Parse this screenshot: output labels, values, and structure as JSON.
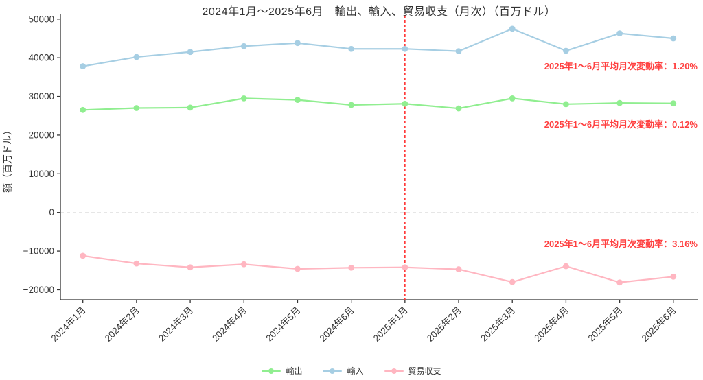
{
  "chart_data": {
    "type": "line",
    "title": "2024年1月～2025年6月　輸出、輸入、貿易収支（月次）（百万ドル）",
    "ylabel": "額（百万ドル）",
    "xlabel": "",
    "x_categories": [
      "2024年1月",
      "2024年2月",
      "2024年3月",
      "2024年4月",
      "2024年5月",
      "2024年6月",
      "2025年1月",
      "2025年2月",
      "2025年3月",
      "2025年4月",
      "2025年5月",
      "2025年6月"
    ],
    "y_ticks": [
      50000,
      40000,
      30000,
      20000,
      10000,
      0,
      -10000,
      -20000
    ],
    "y_tick_labels": [
      "50000",
      "40000",
      "30000",
      "20000",
      "10000",
      "0",
      "−10000",
      "−20000"
    ],
    "ylim": [
      -22600,
      51300
    ],
    "grid": "zero-line-only",
    "legend_position": "bottom-center",
    "series": [
      {
        "name": "輸出",
        "color": "#90EE90",
        "values": [
          26500,
          27000,
          27100,
          29500,
          29100,
          27800,
          28100,
          26900,
          29500,
          28000,
          28300,
          28200
        ]
      },
      {
        "name": "輸入",
        "color": "#A6CEE3",
        "values": [
          37800,
          40200,
          41500,
          43000,
          43800,
          42300,
          42300,
          41700,
          47500,
          41800,
          46300,
          45000
        ]
      },
      {
        "name": "貿易収支",
        "color": "#FFB6C1",
        "values": [
          -11200,
          -13200,
          -14200,
          -13400,
          -14600,
          -14300,
          -14200,
          -14700,
          -18000,
          -13900,
          -18100,
          -16600
        ]
      }
    ],
    "vline": {
      "x_category": "2025年1月",
      "color": "#FF3333",
      "style": "dashed"
    },
    "zero_line_color": "#DDDDDD",
    "axis_color": "#333333",
    "annotations": [
      {
        "id": "imports",
        "text": "2025年1～6月平均月次変動率：1.20%",
        "color": "#FF4040",
        "series": "輸入"
      },
      {
        "id": "exports",
        "text": "2025年1～6月平均月次変動率：0.12%",
        "color": "#FF4040",
        "series": "輸出"
      },
      {
        "id": "balance",
        "text": "2025年1～6月平均月次変動率：3.16%",
        "color": "#FF4040",
        "series": "貿易収支"
      }
    ]
  }
}
